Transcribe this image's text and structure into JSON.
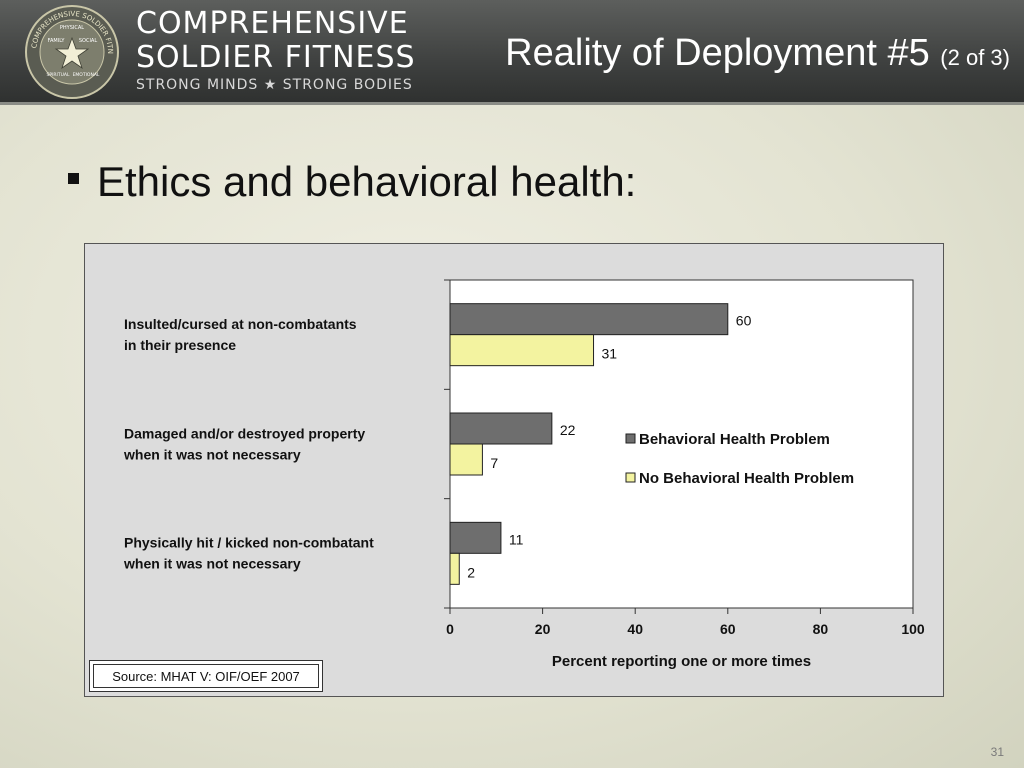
{
  "header": {
    "brand_line1": "COMPREHENSIVE",
    "brand_line2": "SOLDIER FITNESS",
    "brand_tagline": "STRONG MINDS ★ STRONG BODIES",
    "seal_text": "COMPREHENSIVE SOLDIER FITNESS · STRONG MINDS · STRONG BODIES",
    "seal_labels": [
      "PHYSICAL",
      "FAMILY",
      "SOCIAL",
      "SPIRITUAL",
      "EMOTIONAL"
    ],
    "title_main": "Reality of Deployment #5",
    "title_sub": "(2 of 3)"
  },
  "bullet_text": "Ethics and behavioral health:",
  "source_text": "Source: MHAT V: OIF/OEF 2007",
  "page_number": "31",
  "colors": {
    "behavioral": "#6e6e6e",
    "no_behavioral": "#f3f3a0"
  },
  "chart_data": {
    "type": "bar",
    "orientation": "horizontal",
    "title": "",
    "categories": [
      [
        "Insulted/cursed at non-combatants",
        "in their presence"
      ],
      [
        "Damaged and/or destroyed property",
        "when it was not necessary"
      ],
      [
        "Physically hit / kicked non-combatant",
        "when it was not necessary"
      ]
    ],
    "series": [
      {
        "name": "Behavioral Health Problem",
        "values": [
          60,
          22,
          11
        ]
      },
      {
        "name": "No Behavioral Health Problem",
        "values": [
          31,
          7,
          2
        ]
      }
    ],
    "xlabel": "Percent reporting one or more times",
    "ylabel": "",
    "xlim": [
      0,
      100
    ],
    "xticks": [
      "0",
      "20",
      "40",
      "60",
      "80",
      "100"
    ],
    "legend_position": "right"
  }
}
